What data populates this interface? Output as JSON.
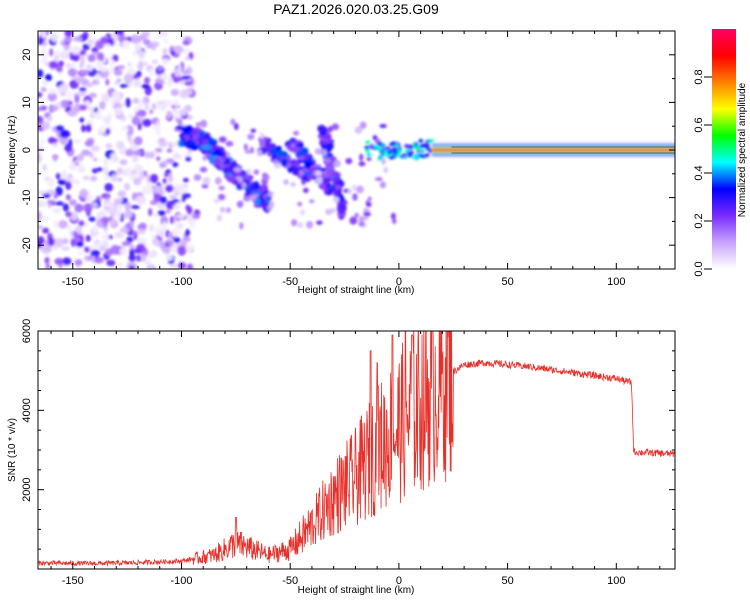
{
  "title": "PAZ1.2026.020.03.25.G09",
  "colors": {
    "snr_line": "#e8302a",
    "frame": "#000000"
  },
  "chart_data": [
    {
      "type": "heatmap",
      "name": "spectrogram",
      "xlabel": "Height of straight line (km)",
      "ylabel": "Frequency (Hz)",
      "xlim": [
        -166,
        127
      ],
      "ylim": [
        -25,
        25
      ],
      "x_ticks": [
        -150,
        -100,
        -50,
        0,
        50,
        100
      ],
      "x_tick_labels": [
        "-150",
        "-100",
        "-50",
        "0",
        "50",
        "100"
      ],
      "y_ticks": [
        -20,
        -10,
        0,
        10,
        20
      ],
      "y_tick_labels": [
        "-20",
        "-10",
        "0",
        "10",
        "20"
      ],
      "colorbar": {
        "label": "Normalized spectral amplitude",
        "range": [
          0,
          1
        ],
        "ticks": [
          0,
          0.2,
          0.4,
          0.6,
          0.8
        ],
        "tick_labels": [
          "0.0",
          "0.2",
          "0.4",
          "0.6",
          "0.8"
        ],
        "colormap": [
          "#ffffff",
          "#c7a3ff",
          "#7a2bff",
          "#0000ff",
          "#00ffff",
          "#00ff00",
          "#ffff00",
          "#ff8000",
          "#ff0000",
          "#ff0066"
        ]
      },
      "features": {
        "noise_region_x": [
          -166,
          -95
        ],
        "descending_ridge": [
          [
            -100,
            3
          ],
          [
            -90,
            2
          ],
          [
            -80,
            -3
          ],
          [
            -70,
            -7
          ],
          [
            -60,
            -11
          ]
        ],
        "secondary_streaks": [
          [
            [
              -62,
              1
            ],
            [
              -40,
              -6
            ]
          ],
          [
            [
              -50,
              2
            ],
            [
              -32,
              -8
            ]
          ],
          [
            [
              -35,
              4
            ],
            [
              -25,
              -14
            ]
          ]
        ],
        "tone_line": {
          "x": [
            15,
            127
          ],
          "y": 0,
          "amplitude": 0.9
        }
      }
    },
    {
      "type": "line",
      "name": "snr",
      "xlabel": "Height of straight line (km)",
      "ylabel": "SNR (10 * v/v)",
      "xlim": [
        -166,
        127
      ],
      "ylim": [
        0,
        6000
      ],
      "x_ticks": [
        -150,
        -100,
        -50,
        0,
        50,
        100
      ],
      "x_tick_labels": [
        "-150",
        "-100",
        "-50",
        "0",
        "50",
        "100"
      ],
      "y_ticks": [
        2000,
        4000,
        6000
      ],
      "y_tick_labels": [
        "2000",
        "4000",
        "6000"
      ],
      "x": [
        -166,
        -140,
        -120,
        -100,
        -85,
        -75,
        -60,
        -50,
        -40,
        -30,
        -20,
        -10,
        0,
        10,
        20,
        30,
        40,
        60,
        80,
        100,
        107,
        108,
        127
      ],
      "y": [
        150,
        140,
        160,
        200,
        350,
        650,
        350,
        500,
        1100,
        1800,
        2300,
        3000,
        3600,
        4200,
        4800,
        5150,
        5200,
        5100,
        4950,
        4800,
        4700,
        2950,
        2900
      ],
      "spikes": [
        [
          -13,
          5500
        ],
        [
          -10,
          5200
        ],
        [
          -3,
          5900
        ],
        [
          3,
          6000
        ],
        [
          6,
          5900
        ],
        [
          -75,
          1300
        ]
      ]
    }
  ]
}
